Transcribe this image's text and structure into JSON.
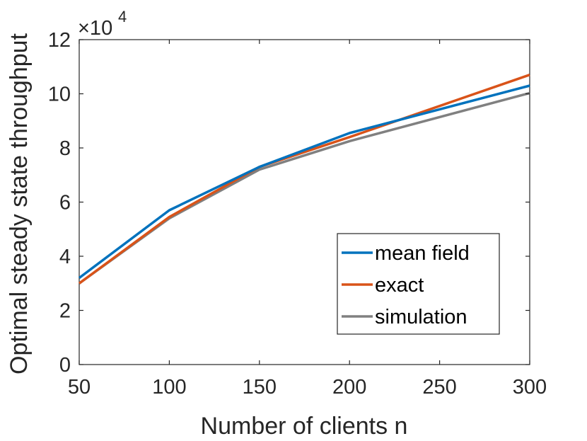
{
  "chart_data": {
    "type": "line",
    "xlabel": "Number of clients n",
    "ylabel": "Optimal steady state throughput",
    "exponent_label": {
      "base": "×10",
      "power": "4"
    },
    "xlim": [
      50,
      300
    ],
    "ylim": [
      0,
      12
    ],
    "xticks": [
      50,
      100,
      150,
      200,
      250,
      300
    ],
    "yticks": [
      0,
      2,
      4,
      6,
      8,
      10,
      12
    ],
    "x": [
      50,
      100,
      150,
      200,
      300
    ],
    "series": [
      {
        "name": "mean field",
        "color": "#0072BD",
        "values": [
          3.2,
          5.7,
          7.3,
          8.55,
          10.3
        ]
      },
      {
        "name": "exact",
        "color": "#D95319",
        "values": [
          3.0,
          5.45,
          7.3,
          8.4,
          10.7
        ]
      },
      {
        "name": "simulation",
        "color": "#808080",
        "values": [
          3.0,
          5.4,
          7.2,
          8.25,
          10.03
        ]
      }
    ],
    "legend_position": "lower-right",
    "grid": false
  }
}
